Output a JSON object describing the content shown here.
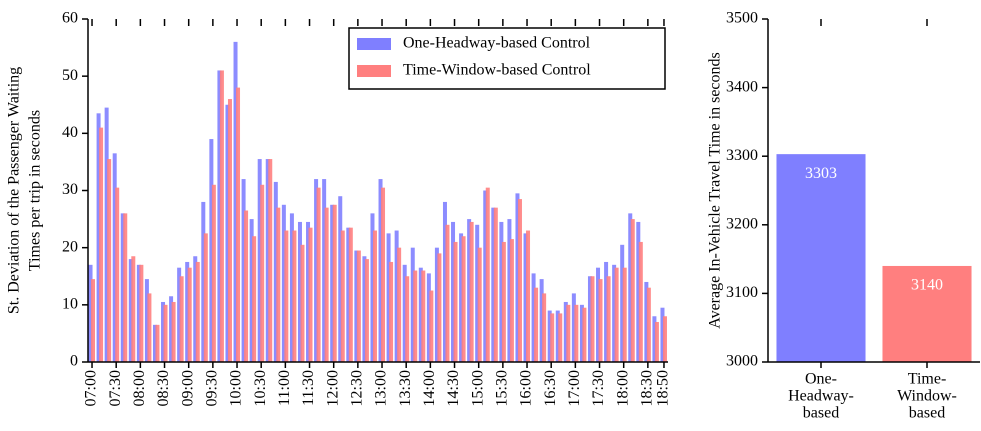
{
  "chart_data": [
    {
      "type": "bar",
      "ylabel": [
        "St. Deviation of the Passenger Waiting",
        "Times per trip in seconds"
      ],
      "categories": [
        "07:00",
        null,
        null,
        "07:30",
        null,
        null,
        "08:00",
        null,
        null,
        "08:30",
        null,
        null,
        "09:00",
        null,
        null,
        "09:30",
        null,
        null,
        "10:00",
        null,
        null,
        "10:30",
        null,
        null,
        "11:00",
        null,
        null,
        "11:30",
        null,
        null,
        "12:00",
        null,
        null,
        "12:30",
        null,
        null,
        "13:00",
        null,
        null,
        "13:30",
        null,
        null,
        "14:00",
        null,
        null,
        "14:30",
        null,
        null,
        "15:00",
        null,
        null,
        "15:30",
        null,
        null,
        "16:00",
        null,
        null,
        "16:30",
        null,
        null,
        "17:00",
        null,
        null,
        "17:30",
        null,
        null,
        "18:00",
        null,
        null,
        "18:30",
        null,
        "18:50"
      ],
      "series": [
        {
          "name": "One-Headway-based Control",
          "color": "#7f7fff",
          "values": [
            17,
            43.5,
            44.5,
            36.5,
            26,
            18,
            17,
            14.5,
            6.5,
            10.5,
            11.5,
            16.5,
            17.5,
            18.5,
            28,
            39,
            51,
            45,
            56,
            32,
            25,
            35.5,
            35.5,
            31.5,
            27.5,
            26,
            24.5,
            24.5,
            32,
            32,
            27.5,
            29,
            23.5,
            19.5,
            18.5,
            26,
            32,
            22.5,
            23,
            17,
            20,
            16.5,
            15.5,
            20,
            28,
            24.5,
            22.5,
            25,
            24,
            30,
            27,
            24.5,
            25,
            29.5,
            22.5,
            15.5,
            14.5,
            9,
            9,
            10.5,
            12,
            10,
            15,
            16.5,
            17.5,
            17,
            20.5,
            26,
            24.5,
            14,
            8,
            9.5
          ]
        },
        {
          "name": "Time-Window-based Control",
          "color": "#ff7f7f",
          "values": [
            14.5,
            41,
            35.5,
            30.5,
            26,
            18.5,
            17,
            12,
            6.5,
            10,
            10.5,
            15,
            16.5,
            17.5,
            22.5,
            31,
            51,
            46,
            48,
            26.5,
            22,
            31,
            35.5,
            27,
            23,
            23,
            20.5,
            23.5,
            30.5,
            27,
            27.5,
            23,
            23.5,
            19.5,
            18,
            23,
            30.5,
            17.5,
            20,
            15,
            16,
            16,
            12.5,
            19,
            24,
            21,
            22,
            24.5,
            20,
            30.5,
            27,
            21,
            21.5,
            28.5,
            23,
            13,
            12,
            8.5,
            8.5,
            10,
            10,
            9.5,
            15,
            14.5,
            15,
            16.5,
            16.5,
            25,
            21,
            13,
            7,
            8
          ]
        }
      ],
      "ylim": [
        0,
        60
      ],
      "yticks": [
        0,
        10,
        20,
        30,
        40,
        50,
        60
      ],
      "legend": "upper right"
    },
    {
      "type": "bar",
      "ylabel": [
        "Average In-Vehicle Travel Time in seconds"
      ],
      "categories": [
        [
          "One-",
          "Headway-",
          "based"
        ],
        [
          "Time-",
          "Window-",
          "based"
        ]
      ],
      "values": [
        3303,
        3140
      ],
      "colors": [
        "#7f7fff",
        "#ff7f7f"
      ],
      "ylim": [
        3000,
        3500
      ],
      "yticks": [
        3000,
        3100,
        3200,
        3300,
        3400,
        3500
      ]
    }
  ]
}
